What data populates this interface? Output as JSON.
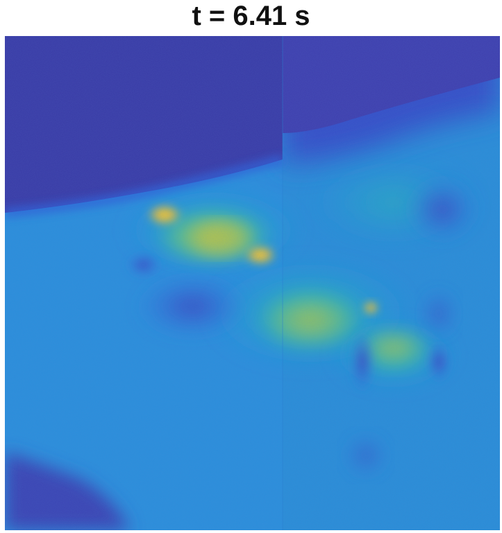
{
  "title": "t = 6.41 s",
  "colormap": {
    "low": "#3b3ea8",
    "mid_low": "#2f6fe0",
    "mid": "#1ea0d8",
    "mid_high": "#2ab8b0",
    "high": "#9cc84a",
    "peak": "#f8d028"
  }
}
